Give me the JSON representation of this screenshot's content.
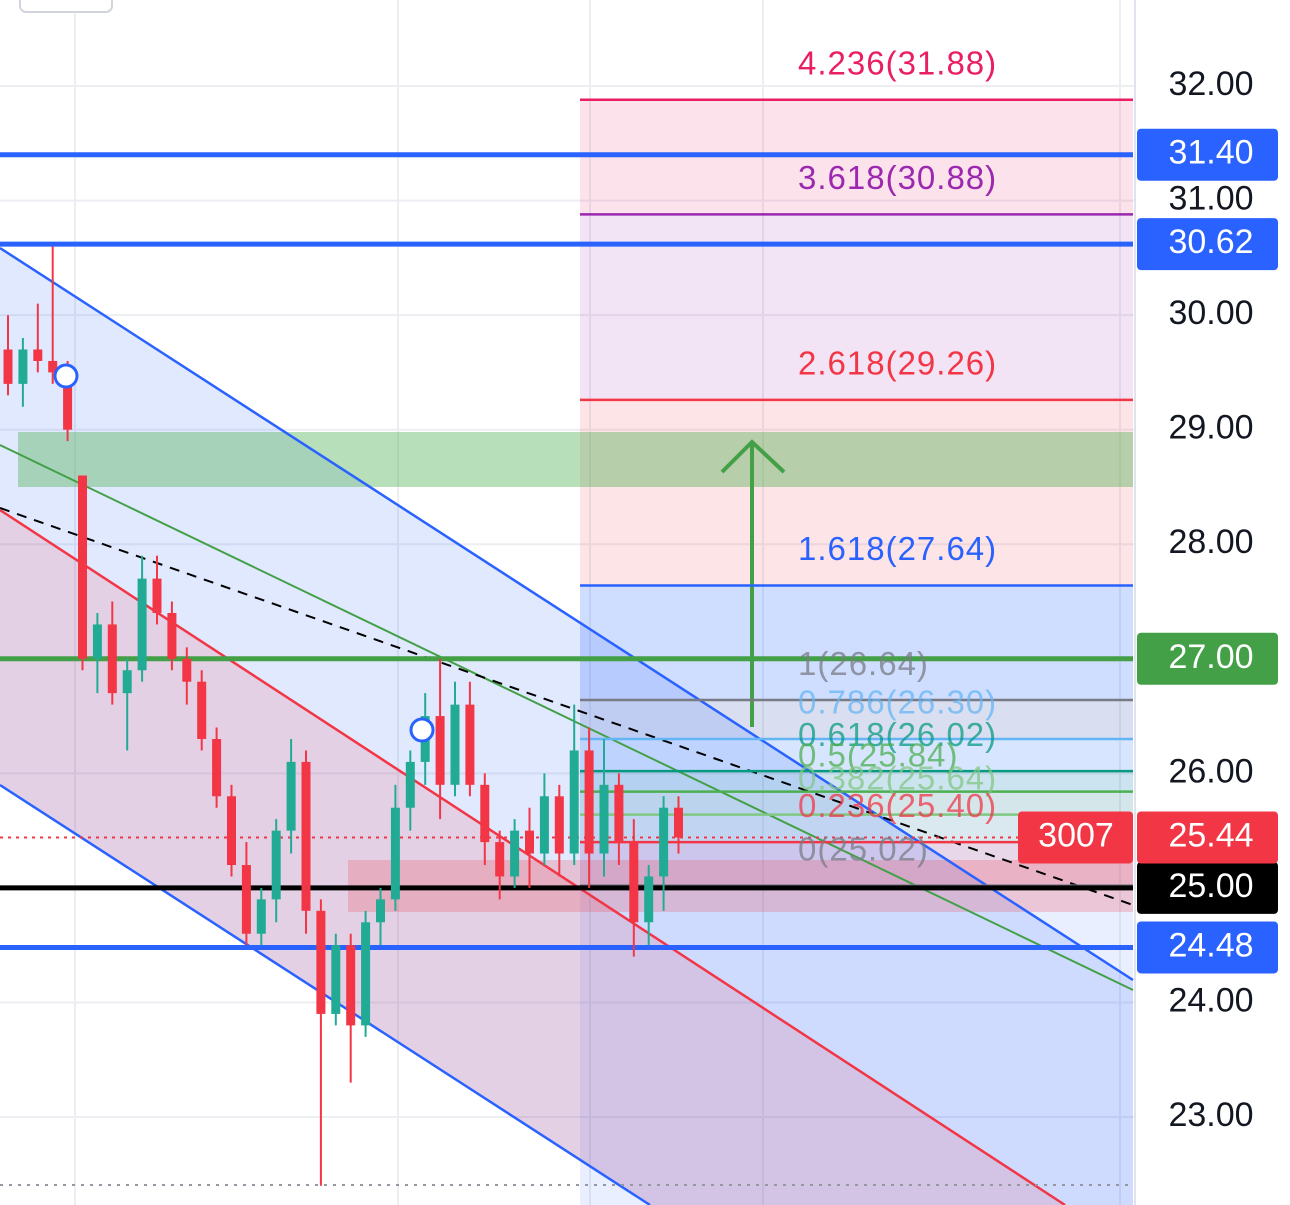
{
  "chart_data": {
    "type": "candlestick",
    "ylim": [
      22.232,
      32.751
    ],
    "yticks": [
      {
        "value": 23,
        "label": "23.00"
      },
      {
        "value": 24,
        "label": "24.00"
      },
      {
        "value": 25,
        "label": "25.00"
      },
      {
        "value": 26,
        "label": "26.00"
      },
      {
        "value": 27,
        "label": "27.00"
      },
      {
        "value": 28,
        "label": "28.00"
      },
      {
        "value": 29,
        "label": "29.00"
      },
      {
        "value": 30,
        "label": "30.00"
      },
      {
        "value": 31,
        "label": "31.00"
      },
      {
        "value": 32,
        "label": "32.00"
      }
    ],
    "grid": true,
    "up_color": "#22ab94",
    "down_color": "#f23645",
    "candles": {
      "open": [
        29.7,
        29.4,
        29.7,
        29.6,
        29.5,
        28.6,
        27.0,
        27.3,
        26.7,
        26.9,
        27.7,
        27.4,
        27.0,
        26.8,
        26.3,
        25.8,
        25.2,
        24.6,
        24.9,
        25.5,
        26.1,
        24.8,
        23.9,
        24.5,
        23.8,
        24.7,
        24.9,
        25.7,
        26.1,
        26.5,
        25.9,
        26.6,
        25.9,
        25.4,
        25.1,
        25.5,
        25.3,
        25.8,
        25.3,
        26.2,
        25.3,
        25.9,
        25.4,
        24.7,
        25.1,
        25.7
      ],
      "high": [
        30.0,
        29.8,
        30.1,
        30.6,
        29.6,
        28.6,
        27.4,
        27.5,
        27.0,
        27.9,
        27.9,
        27.5,
        27.1,
        26.9,
        26.4,
        25.9,
        25.4,
        25.0,
        25.6,
        26.3,
        26.2,
        24.9,
        24.6,
        24.6,
        24.8,
        25.0,
        25.9,
        26.2,
        26.7,
        27.0,
        26.8,
        26.8,
        26.0,
        25.5,
        25.6,
        25.7,
        26.0,
        25.9,
        26.6,
        26.4,
        26.3,
        26.0,
        25.6,
        25.2,
        25.8,
        25.8
      ],
      "low": [
        29.3,
        29.2,
        29.5,
        29.4,
        28.9,
        26.9,
        26.7,
        26.6,
        26.2,
        26.8,
        27.3,
        26.9,
        26.6,
        26.2,
        25.7,
        25.1,
        24.5,
        24.5,
        24.7,
        25.3,
        24.6,
        22.4,
        23.8,
        23.3,
        23.7,
        24.5,
        24.8,
        25.5,
        25.9,
        25.6,
        25.8,
        25.8,
        25.2,
        24.9,
        25.0,
        25.0,
        25.2,
        25.1,
        25.2,
        25.0,
        25.1,
        25.2,
        24.4,
        24.5,
        24.8,
        25.3
      ],
      "close": [
        29.4,
        29.7,
        29.6,
        29.5,
        29.0,
        27.0,
        27.3,
        26.7,
        26.9,
        27.7,
        27.4,
        27.0,
        26.8,
        26.3,
        25.8,
        25.2,
        24.6,
        24.9,
        25.5,
        26.1,
        24.8,
        23.9,
        24.5,
        23.8,
        24.7,
        24.9,
        25.7,
        26.1,
        26.5,
        25.9,
        26.6,
        25.9,
        25.4,
        25.1,
        25.5,
        25.3,
        25.8,
        25.3,
        26.2,
        25.3,
        25.9,
        25.4,
        24.7,
        25.1,
        25.7,
        25.44
      ]
    },
    "fib_levels": [
      {
        "label": "4.236(31.88)",
        "value": 31.88,
        "color": "#e91e63"
      },
      {
        "label": "3.618(30.88)",
        "value": 30.88,
        "color": "#9c27b0"
      },
      {
        "label": "2.618(29.26)",
        "value": 29.26,
        "color": "#f23645"
      },
      {
        "label": "1.618(27.64)",
        "value": 27.64,
        "color": "#2962ff"
      },
      {
        "label": "1(26.64)",
        "value": 26.64,
        "color": "#787b86"
      },
      {
        "label": "0.786(26.30)",
        "value": 26.3,
        "color": "#64b5f6"
      },
      {
        "label": "0.618(26.02)",
        "value": 26.02,
        "color": "#089981"
      },
      {
        "label": "0.5(25.84)",
        "value": 25.84,
        "color": "#4caf50"
      },
      {
        "label": "0.382(25.64)",
        "value": 25.64,
        "color": "#81c784"
      },
      {
        "label": "0.236(25.40)",
        "value": 25.4,
        "color": "#f23645"
      },
      {
        "label": "0(25.02)",
        "value": 25.02,
        "color": "#787b86"
      }
    ],
    "price_lines": [
      {
        "value": 31.4,
        "label": "31.40",
        "color": "#2962ff"
      },
      {
        "value": 30.62,
        "label": "30.62",
        "color": "#2962ff"
      },
      {
        "value": 27,
        "label": "27.00",
        "color": "#43a047"
      },
      {
        "value": 25,
        "label": "25.00",
        "color": "#000000"
      },
      {
        "value": 24.48,
        "label": "24.48",
        "color": "#2962ff"
      }
    ],
    "last_price": {
      "value": 25.44,
      "label": "25.44",
      "countdown": "3007",
      "color": "#f23645"
    }
  }
}
